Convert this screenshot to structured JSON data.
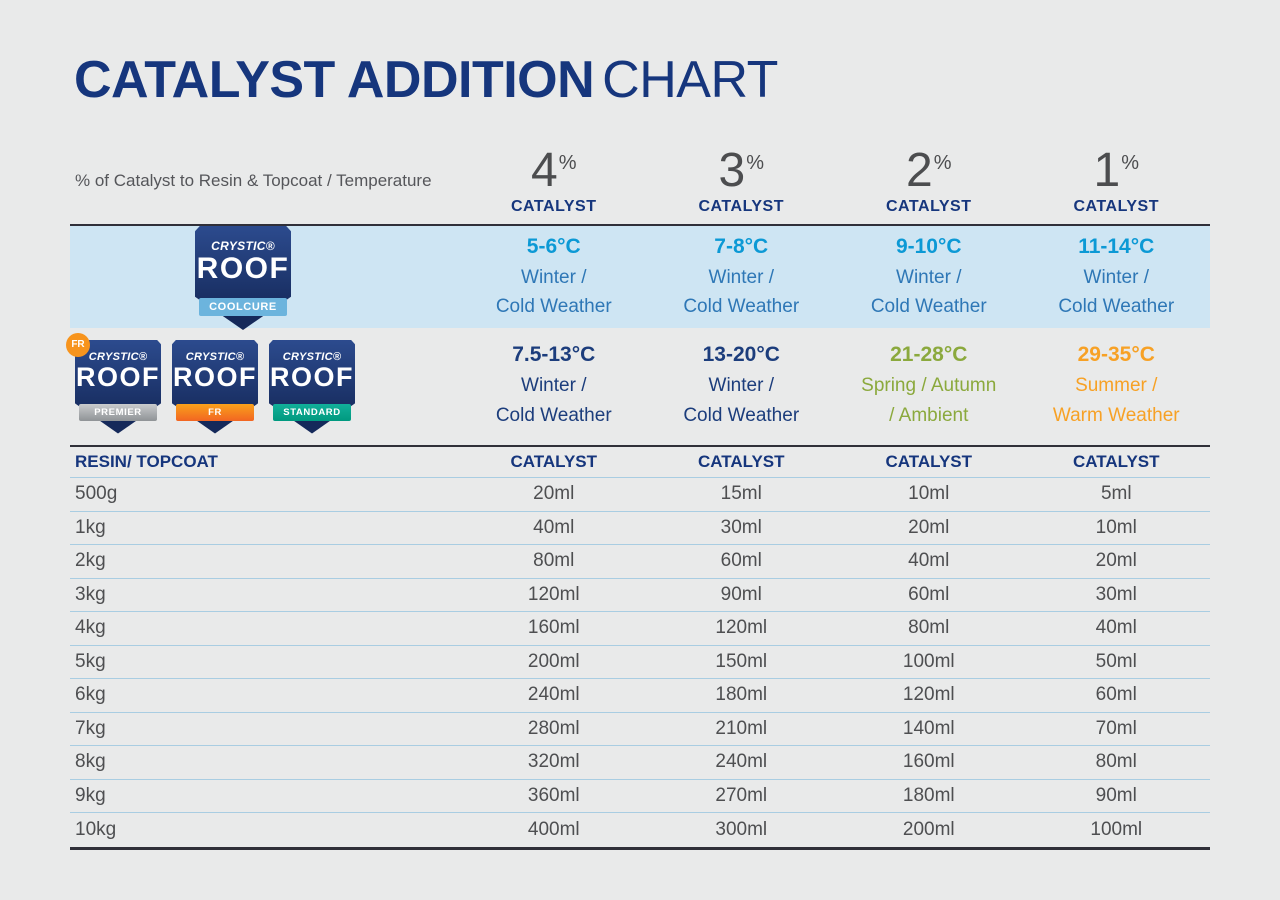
{
  "page": {
    "title_bold": "CATALYST ADDITION",
    "title_light": "CHART"
  },
  "header": {
    "left_label": "% of Catalyst to Resin & Topcoat / Temperature",
    "percent_symbol": "%",
    "catalyst_label": "CATALYST",
    "columns": [
      {
        "percent": "4"
      },
      {
        "percent": "3"
      },
      {
        "percent": "2"
      },
      {
        "percent": "1"
      }
    ]
  },
  "coolcure_row": {
    "logo": {
      "brand": "CRYSTIC®",
      "name": "ROOF",
      "banner": "COOLCURE"
    },
    "cells": [
      {
        "temp": "5-6°C",
        "line1": "Winter /",
        "line2": "Cold Weather"
      },
      {
        "temp": "7-8°C",
        "line1": "Winter /",
        "line2": "Cold Weather"
      },
      {
        "temp": "9-10°C",
        "line1": "Winter /",
        "line2": "Cold Weather"
      },
      {
        "temp": "11-14°C",
        "line1": "Winter /",
        "line2": "Cold Weather"
      }
    ]
  },
  "products_row": {
    "logos": [
      {
        "brand": "CRYSTIC®",
        "name": "ROOF",
        "banner": "PREMIER",
        "badge": "FR"
      },
      {
        "brand": "CRYSTIC®",
        "name": "ROOF",
        "banner": "FR"
      },
      {
        "brand": "CRYSTIC®",
        "name": "ROOF",
        "banner": "STANDARD"
      }
    ],
    "cells": [
      {
        "temp": "7.5-13°C",
        "line1": "Winter /",
        "line2": "Cold Weather",
        "theme": "navy"
      },
      {
        "temp": "13-20°C",
        "line1": "Winter /",
        "line2": "Cold Weather",
        "theme": "navy"
      },
      {
        "temp": "21-28°C",
        "line1": "Spring / Autumn",
        "line2": "/ Ambient",
        "theme": "green"
      },
      {
        "temp": "29-35°C",
        "line1": "Summer /",
        "line2": "Warm Weather",
        "theme": "orange"
      }
    ]
  },
  "table": {
    "left_header": "RESIN/ TOPCOAT",
    "catalyst_header": "CATALYST",
    "rows": [
      {
        "label": "500g",
        "values": [
          "20ml",
          "15ml",
          "10ml",
          "5ml"
        ]
      },
      {
        "label": "1kg",
        "values": [
          "40ml",
          "30ml",
          "20ml",
          "10ml"
        ]
      },
      {
        "label": "2kg",
        "values": [
          "80ml",
          "60ml",
          "40ml",
          "20ml"
        ]
      },
      {
        "label": "3kg",
        "values": [
          "120ml",
          "90ml",
          "60ml",
          "30ml"
        ]
      },
      {
        "label": "4kg",
        "values": [
          "160ml",
          "120ml",
          "80ml",
          "40ml"
        ]
      },
      {
        "label": "5kg",
        "values": [
          "200ml",
          "150ml",
          "100ml",
          "50ml"
        ]
      },
      {
        "label": "6kg",
        "values": [
          "240ml",
          "180ml",
          "120ml",
          "60ml"
        ]
      },
      {
        "label": "7kg",
        "values": [
          "280ml",
          "210ml",
          "140ml",
          "70ml"
        ]
      },
      {
        "label": "8kg",
        "values": [
          "320ml",
          "240ml",
          "160ml",
          "80ml"
        ]
      },
      {
        "label": "9kg",
        "values": [
          "360ml",
          "270ml",
          "180ml",
          "90ml"
        ]
      },
      {
        "label": "10kg",
        "values": [
          "400ml",
          "300ml",
          "200ml",
          "100ml"
        ]
      }
    ]
  },
  "colors": {
    "navy": "#16367d",
    "bright_blue": "#0c99d5",
    "medium_blue": "#2e77b6",
    "green": "#8ba93d",
    "orange": "#f7a125",
    "band_blue": "#cee5f3",
    "text_gray": "#4e4f51"
  },
  "chart_data": {
    "type": "table",
    "title": "CATALYST ADDITION CHART",
    "columns": [
      "RESIN/ TOPCOAT",
      "4% CATALYST",
      "3% CATALYST",
      "2% CATALYST",
      "1% CATALYST"
    ],
    "temperature_guide": {
      "crystic_roof_coolcure": [
        "5-6°C Winter / Cold Weather",
        "7-8°C Winter / Cold Weather",
        "9-10°C Winter / Cold Weather",
        "11-14°C Winter / Cold Weather"
      ],
      "crystic_roof_premier_fr_standard": [
        "7.5-13°C Winter / Cold Weather",
        "13-20°C Winter / Cold Weather",
        "21-28°C Spring / Autumn / Ambient",
        "29-35°C Summer / Warm Weather"
      ]
    },
    "rows": [
      [
        "500g",
        "20ml",
        "15ml",
        "10ml",
        "5ml"
      ],
      [
        "1kg",
        "40ml",
        "30ml",
        "20ml",
        "10ml"
      ],
      [
        "2kg",
        "80ml",
        "60ml",
        "40ml",
        "20ml"
      ],
      [
        "3kg",
        "120ml",
        "90ml",
        "60ml",
        "30ml"
      ],
      [
        "4kg",
        "160ml",
        "120ml",
        "80ml",
        "40ml"
      ],
      [
        "5kg",
        "200ml",
        "150ml",
        "100ml",
        "50ml"
      ],
      [
        "6kg",
        "240ml",
        "180ml",
        "120ml",
        "60ml"
      ],
      [
        "7kg",
        "280ml",
        "210ml",
        "140ml",
        "70ml"
      ],
      [
        "8kg",
        "320ml",
        "240ml",
        "160ml",
        "80ml"
      ],
      [
        "9kg",
        "360ml",
        "270ml",
        "180ml",
        "90ml"
      ],
      [
        "10kg",
        "400ml",
        "300ml",
        "200ml",
        "100ml"
      ]
    ]
  }
}
